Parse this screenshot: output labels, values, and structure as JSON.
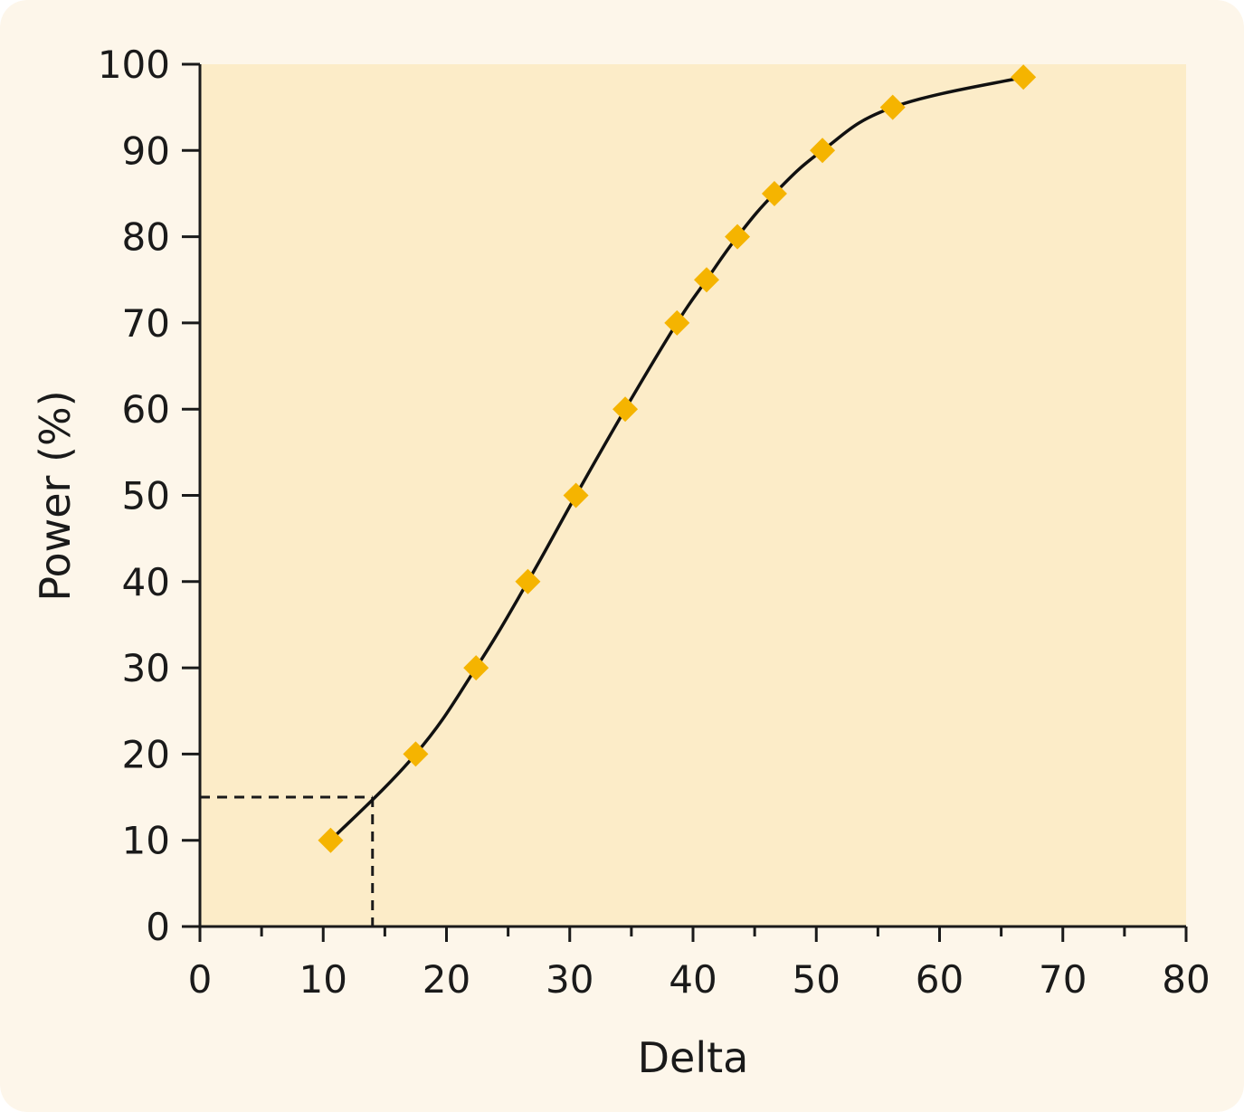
{
  "colors": {
    "card_background": "#fdf6ea",
    "plot_background": "#fcecc8",
    "axis": "#1a1a1a",
    "line": "#111111",
    "marker": "#f5b400",
    "reference_line": "#1a1a1a"
  },
  "chart_data": {
    "type": "line",
    "title": "",
    "xlabel": "Delta",
    "ylabel": "Power (%)",
    "xlim": [
      0,
      80
    ],
    "ylim": [
      0,
      100
    ],
    "x_ticks": [
      0,
      10,
      20,
      30,
      40,
      50,
      60,
      70,
      80
    ],
    "x_minor_step": 5,
    "y_ticks": [
      0,
      10,
      20,
      30,
      40,
      50,
      60,
      70,
      80,
      90,
      100
    ],
    "grid": false,
    "legend": "none",
    "marker": "diamond",
    "series": [
      {
        "x": [
          10.6,
          17.5,
          22.4,
          26.6,
          30.5,
          34.5,
          38.7,
          41.1,
          43.6,
          46.6,
          50.5,
          56.2,
          66.8
        ],
        "y": [
          10,
          20,
          30,
          40,
          50,
          60,
          70,
          75,
          80,
          85,
          90,
          95,
          98.5
        ]
      }
    ],
    "reference": {
      "x": 14,
      "y": 15,
      "style": "dashed"
    }
  }
}
